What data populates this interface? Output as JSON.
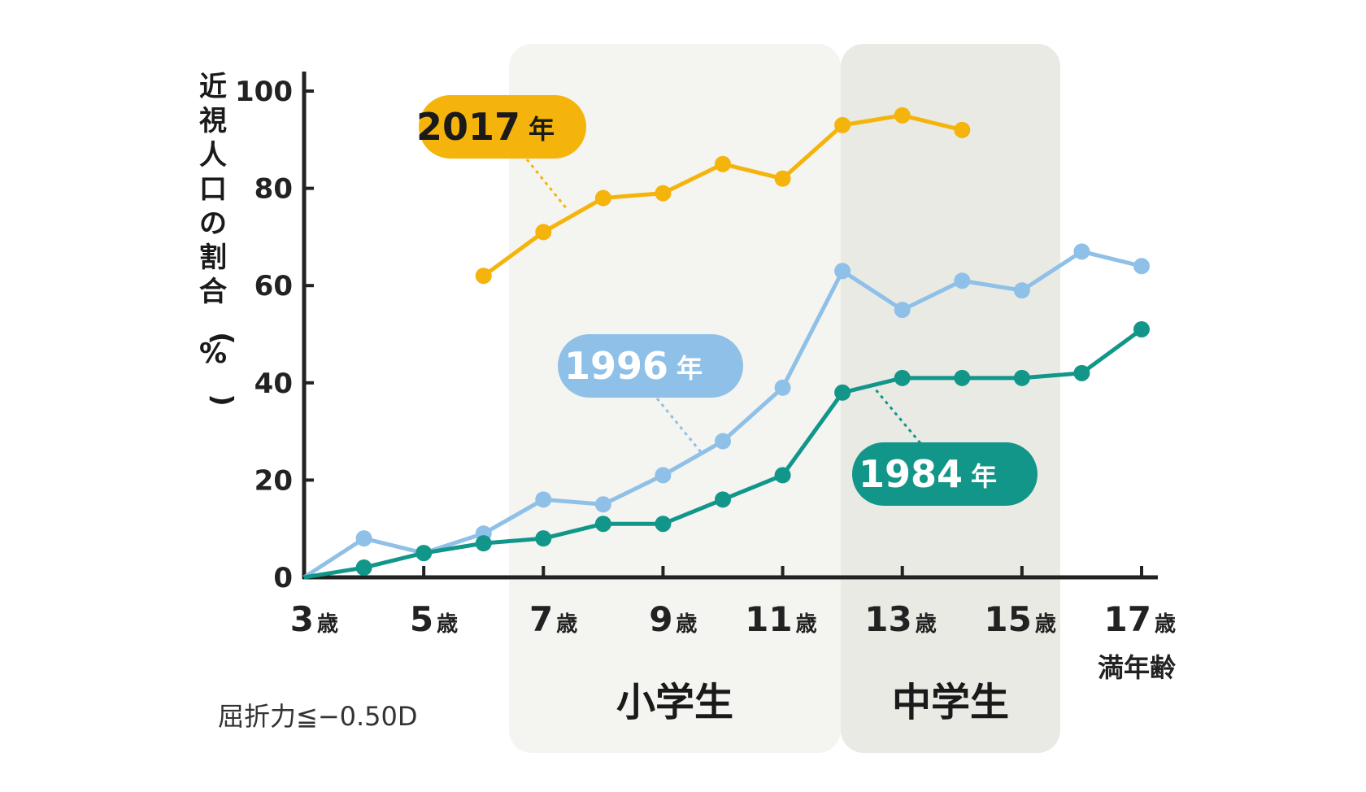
{
  "chart_data": {
    "type": "line",
    "ylabel": "近視人口の割合（%）",
    "x_unit_label": "満年齢",
    "note": "屈折力≦−0.50D",
    "ylim": [
      0,
      100
    ],
    "yticks": [
      "0",
      "20",
      "40",
      "60",
      "80",
      "100"
    ],
    "xticks": [
      {
        "num": "3",
        "unit": "歳",
        "age": 3
      },
      {
        "num": "5",
        "unit": "歳",
        "age": 5
      },
      {
        "num": "7",
        "unit": "歳",
        "age": 7
      },
      {
        "num": "9",
        "unit": "歳",
        "age": 9
      },
      {
        "num": "11",
        "unit": "歳",
        "age": 11
      },
      {
        "num": "13",
        "unit": "歳",
        "age": 13
      },
      {
        "num": "15",
        "unit": "歳",
        "age": 15
      },
      {
        "num": "17",
        "unit": "歳",
        "age": 17
      }
    ],
    "bands": [
      {
        "label": "小学生",
        "color": "#f4f4f0"
      },
      {
        "label": "中学生",
        "color": "#e9eae4"
      }
    ],
    "series": [
      {
        "name": "2017",
        "unit": "年",
        "color": "#f5b40c",
        "x": [
          6,
          7,
          8,
          9,
          10,
          11,
          12,
          13,
          14
        ],
        "y": [
          62,
          71,
          78,
          79,
          85,
          82,
          93,
          95,
          92
        ]
      },
      {
        "name": "1996",
        "unit": "年",
        "color": "#8ec0e8",
        "x": [
          3,
          4,
          5,
          6,
          7,
          8,
          9,
          10,
          11,
          12,
          13,
          14,
          15,
          16,
          17
        ],
        "y": [
          0,
          8,
          5,
          9,
          16,
          15,
          21,
          28,
          39,
          63,
          55,
          61,
          59,
          67,
          64
        ]
      },
      {
        "name": "1984",
        "unit": "年",
        "color": "#13968a",
        "x": [
          3,
          4,
          5,
          6,
          7,
          8,
          9,
          10,
          11,
          12,
          13,
          14,
          15,
          16,
          17
        ],
        "y": [
          0,
          2,
          5,
          7,
          8,
          11,
          11,
          16,
          21,
          38,
          41,
          41,
          41,
          42,
          51
        ]
      }
    ]
  }
}
